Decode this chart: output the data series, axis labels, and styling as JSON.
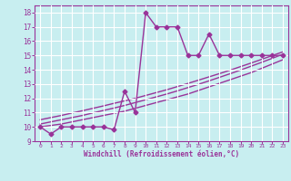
{
  "xlabel": "Windchill (Refroidissement éolien,°C)",
  "bg_color": "#c8eef0",
  "line_color": "#993399",
  "grid_color": "#ffffff",
  "xlim": [
    -0.5,
    23.5
  ],
  "ylim": [
    9,
    18.5
  ],
  "yticks": [
    9,
    10,
    11,
    12,
    13,
    14,
    15,
    16,
    17,
    18
  ],
  "xticks": [
    0,
    1,
    2,
    3,
    4,
    5,
    6,
    7,
    8,
    9,
    10,
    11,
    12,
    13,
    14,
    15,
    16,
    17,
    18,
    19,
    20,
    21,
    22,
    23
  ],
  "main_x": [
    0,
    1,
    2,
    3,
    4,
    5,
    6,
    7,
    8,
    9,
    10,
    11,
    12,
    13,
    14,
    15,
    16,
    17,
    18,
    19,
    20,
    21,
    22,
    23
  ],
  "main_y": [
    10,
    9.5,
    10,
    10,
    10,
    10,
    10,
    9.8,
    12.5,
    11,
    18,
    17,
    17,
    17,
    15,
    15,
    16.5,
    15,
    15,
    15,
    15,
    15,
    15,
    15
  ],
  "trend1_x": [
    0,
    1,
    2,
    3,
    4,
    5,
    6,
    7,
    8,
    9,
    10,
    11,
    12,
    13,
    14,
    15,
    16,
    17,
    18,
    19,
    20,
    21,
    22,
    23
  ],
  "trend1_y": [
    10.0,
    10.1,
    10.2,
    10.35,
    10.5,
    10.65,
    10.8,
    10.95,
    11.1,
    11.3,
    11.5,
    11.7,
    11.9,
    12.1,
    12.3,
    12.55,
    12.8,
    13.05,
    13.3,
    13.55,
    13.8,
    14.1,
    14.4,
    14.7
  ],
  "trend2_x": [
    0,
    1,
    2,
    3,
    4,
    5,
    6,
    7,
    8,
    9,
    10,
    11,
    12,
    13,
    14,
    15,
    16,
    17,
    18,
    19,
    20,
    21,
    22,
    23
  ],
  "trend2_y": [
    10.2,
    10.35,
    10.5,
    10.65,
    10.8,
    10.98,
    11.15,
    11.32,
    11.5,
    11.7,
    11.9,
    12.1,
    12.3,
    12.52,
    12.75,
    12.98,
    13.22,
    13.47,
    13.72,
    13.98,
    14.25,
    14.52,
    14.8,
    15.08
  ],
  "trend3_x": [
    0,
    1,
    2,
    3,
    4,
    5,
    6,
    7,
    8,
    9,
    10,
    11,
    12,
    13,
    14,
    15,
    16,
    17,
    18,
    19,
    20,
    21,
    22,
    23
  ],
  "trend3_y": [
    10.5,
    10.65,
    10.8,
    10.97,
    11.13,
    11.3,
    11.47,
    11.65,
    11.82,
    12.0,
    12.2,
    12.4,
    12.6,
    12.82,
    13.04,
    13.27,
    13.5,
    13.73,
    13.97,
    14.22,
    14.47,
    14.73,
    14.99,
    15.25
  ],
  "marker": "D",
  "markersize": 2.5,
  "linewidth": 1.0
}
